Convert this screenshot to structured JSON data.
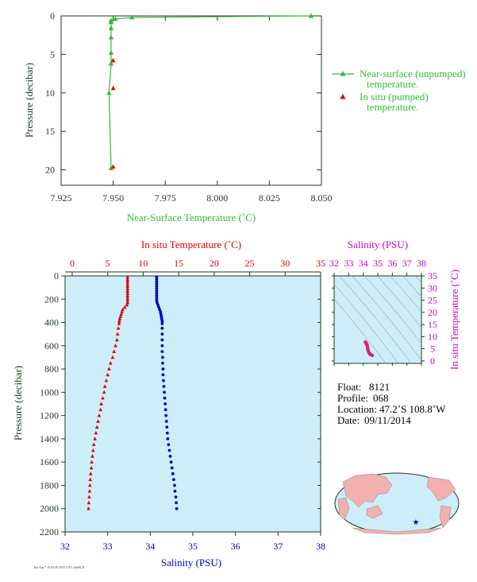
{
  "colors": {
    "near_surface": "#33bb33",
    "insitu_temp": "#dd0000",
    "salinity": "#0000cc",
    "ts_magenta": "#cc00cc",
    "axis_dark": "#1f3a1f",
    "plot_bg": "#cdeef8"
  },
  "chart_data": [
    {
      "type": "line",
      "title": "",
      "xlabel": "Near-Surface Temperature (˚C)",
      "ylabel": "Pressure (decibar)",
      "xlim": [
        7.925,
        8.05
      ],
      "ylim": [
        22,
        0
      ],
      "x_ticks": [
        "7.925",
        "7.950",
        "7.975",
        "8.000",
        "8.025",
        "8.050"
      ],
      "y_ticks": [
        "0",
        "5",
        "10",
        "15",
        "20"
      ],
      "legend_position": "right",
      "series": [
        {
          "name": "Near-surface (unpumped) temperature.",
          "style": "line-with-triangles",
          "points": [
            [
              8.045,
              0.0
            ],
            [
              7.959,
              0.2
            ],
            [
              7.951,
              0.4
            ],
            [
              7.949,
              0.6
            ],
            [
              7.949,
              0.8
            ],
            [
              7.949,
              1.6
            ],
            [
              7.949,
              2.8
            ],
            [
              7.949,
              4.8
            ],
            [
              7.949,
              6.2
            ],
            [
              7.948,
              10.0
            ],
            [
              7.949,
              19.8
            ]
          ]
        },
        {
          "name": "In situ (pumped) temperature.",
          "style": "triangles",
          "points": [
            [
              7.95,
              5.8
            ],
            [
              7.95,
              9.4
            ],
            [
              7.95,
              19.6
            ]
          ]
        }
      ]
    },
    {
      "type": "scatter",
      "title": "",
      "xlabel": "Salinity (PSU)",
      "x2label": "In situ Temperature (˚C)",
      "ylabel": "Pressure (decibar)",
      "xlim": [
        32,
        38
      ],
      "x2lim": [
        -1,
        35
      ],
      "ylim": [
        2200,
        0
      ],
      "x_ticks": [
        "32",
        "33",
        "34",
        "35",
        "36",
        "37",
        "38"
      ],
      "x2_ticks": [
        "0",
        "5",
        "10",
        "15",
        "20",
        "25",
        "30",
        "35"
      ],
      "y_ticks": [
        "0",
        "200",
        "400",
        "600",
        "800",
        "1000",
        "1200",
        "1400",
        "1600",
        "1800",
        "2000",
        "2200"
      ],
      "series": [
        {
          "name": "In situ Temperature (˚C)",
          "axis": "top",
          "marker": "triangle",
          "points": [
            [
              7.8,
              10
            ],
            [
              7.8,
              30
            ],
            [
              7.8,
              50
            ],
            [
              7.8,
              70
            ],
            [
              7.8,
              90
            ],
            [
              7.8,
              110
            ],
            [
              7.8,
              130
            ],
            [
              7.8,
              150
            ],
            [
              7.8,
              170
            ],
            [
              7.8,
              190
            ],
            [
              7.8,
              210
            ],
            [
              7.8,
              230
            ],
            [
              7.7,
              250
            ],
            [
              7.4,
              270
            ],
            [
              7.1,
              290
            ],
            [
              7.0,
              310
            ],
            [
              6.9,
              330
            ],
            [
              6.8,
              350
            ],
            [
              6.7,
              370
            ],
            [
              6.65,
              390
            ],
            [
              6.6,
              410
            ],
            [
              6.5,
              450
            ],
            [
              6.4,
              500
            ],
            [
              6.3,
              550
            ],
            [
              6.1,
              600
            ],
            [
              5.9,
              650
            ],
            [
              5.7,
              700
            ],
            [
              5.4,
              750
            ],
            [
              5.2,
              800
            ],
            [
              5.0,
              850
            ],
            [
              4.8,
              900
            ],
            [
              4.6,
              950
            ],
            [
              4.5,
              1000
            ],
            [
              4.3,
              1050
            ],
            [
              4.1,
              1100
            ],
            [
              4.0,
              1150
            ],
            [
              3.8,
              1200
            ],
            [
              3.65,
              1250
            ],
            [
              3.5,
              1300
            ],
            [
              3.35,
              1350
            ],
            [
              3.2,
              1400
            ],
            [
              3.05,
              1450
            ],
            [
              2.95,
              1500
            ],
            [
              2.85,
              1550
            ],
            [
              2.75,
              1600
            ],
            [
              2.7,
              1650
            ],
            [
              2.6,
              1700
            ],
            [
              2.55,
              1750
            ],
            [
              2.5,
              1800
            ],
            [
              2.45,
              1850
            ],
            [
              2.4,
              1900
            ],
            [
              2.35,
              1950
            ],
            [
              2.3,
              2000
            ]
          ]
        },
        {
          "name": "Salinity (PSU)",
          "axis": "bottom",
          "marker": "dot",
          "points": [
            [
              34.15,
              10
            ],
            [
              34.15,
              30
            ],
            [
              34.15,
              50
            ],
            [
              34.15,
              70
            ],
            [
              34.15,
              90
            ],
            [
              34.15,
              110
            ],
            [
              34.15,
              130
            ],
            [
              34.15,
              150
            ],
            [
              34.15,
              170
            ],
            [
              34.15,
              190
            ],
            [
              34.15,
              210
            ],
            [
              34.16,
              230
            ],
            [
              34.18,
              250
            ],
            [
              34.2,
              270
            ],
            [
              34.22,
              290
            ],
            [
              34.24,
              310
            ],
            [
              34.25,
              330
            ],
            [
              34.26,
              350
            ],
            [
              34.27,
              370
            ],
            [
              34.28,
              390
            ],
            [
              34.28,
              410
            ],
            [
              34.28,
              450
            ],
            [
              34.28,
              500
            ],
            [
              34.28,
              550
            ],
            [
              34.28,
              600
            ],
            [
              34.28,
              650
            ],
            [
              34.29,
              700
            ],
            [
              34.29,
              750
            ],
            [
              34.3,
              800
            ],
            [
              34.3,
              850
            ],
            [
              34.31,
              900
            ],
            [
              34.32,
              950
            ],
            [
              34.33,
              1000
            ],
            [
              34.34,
              1050
            ],
            [
              34.35,
              1100
            ],
            [
              34.36,
              1150
            ],
            [
              34.37,
              1200
            ],
            [
              34.38,
              1250
            ],
            [
              34.39,
              1300
            ],
            [
              34.4,
              1350
            ],
            [
              34.41,
              1400
            ],
            [
              34.43,
              1450
            ],
            [
              34.45,
              1500
            ],
            [
              34.47,
              1550
            ],
            [
              34.49,
              1600
            ],
            [
              34.51,
              1650
            ],
            [
              34.53,
              1700
            ],
            [
              34.55,
              1750
            ],
            [
              34.57,
              1800
            ],
            [
              34.58,
              1850
            ],
            [
              34.6,
              1900
            ],
            [
              34.61,
              1950
            ],
            [
              34.62,
              2000
            ]
          ]
        }
      ]
    },
    {
      "type": "scatter",
      "title": "",
      "xlabel": "Salinity (PSU)",
      "ylabel": "In situ Temperature (˚C)",
      "xlim": [
        32,
        38
      ],
      "ylim": [
        -1,
        35
      ],
      "x_ticks": [
        "32",
        "33",
        "34",
        "35",
        "36",
        "37",
        "38"
      ],
      "y_ticks": [
        "0",
        "5",
        "10",
        "15",
        "20",
        "25",
        "30",
        "35"
      ],
      "series": [
        {
          "name": "",
          "points": [
            [
              34.15,
              7.8
            ],
            [
              34.18,
              7.5
            ],
            [
              34.22,
              7.0
            ],
            [
              34.26,
              6.7
            ],
            [
              34.28,
              6.3
            ],
            [
              34.29,
              5.6
            ],
            [
              34.31,
              4.8
            ],
            [
              34.34,
              4.2
            ],
            [
              34.38,
              3.6
            ],
            [
              34.43,
              3.0
            ],
            [
              34.49,
              2.7
            ],
            [
              34.55,
              2.5
            ],
            [
              34.62,
              2.3
            ]
          ]
        }
      ]
    }
  ],
  "float_info": {
    "float_label": "Float:",
    "float_value": "8121",
    "profile_label": "Profile:",
    "profile_value": "068",
    "location_label": "Location:",
    "location_value": "47.2˚S  108.8˚W",
    "date_label": "Date:",
    "date_value": "09/11/2014"
  },
  "footer_text": "Tue Apr 7 15:52:49 2015 UTC  ifile8121",
  "map": {
    "marker": "star",
    "marker_color": "#0000cc",
    "land_color": "#f2b0b0",
    "ocean_color": "#cdeef8"
  }
}
